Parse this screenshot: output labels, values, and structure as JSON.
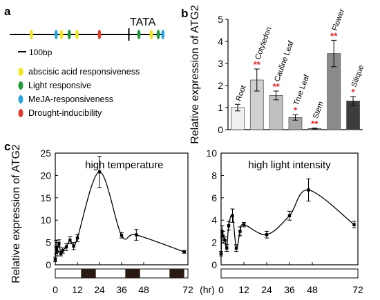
{
  "panel_labels": {
    "a": "a",
    "b": "b",
    "c": "c"
  },
  "panel_a": {
    "tata_label": "TATA",
    "scale_label": "100bp",
    "motifs": [
      {
        "color": "#f2e51b",
        "label": "abscisic acid responsiveness"
      },
      {
        "color": "#1f9a3b",
        "label": "Light responsive"
      },
      {
        "color": "#2aa6df",
        "label": "MeJA-responsiveness"
      },
      {
        "color": "#e23b2e",
        "label": "Drought-inducibility"
      }
    ],
    "sites": [
      {
        "pos": 0.14,
        "color": "#f2e51b"
      },
      {
        "pos": 0.3,
        "color": "#2aa6df"
      },
      {
        "pos": 0.335,
        "color": "#f2e51b"
      },
      {
        "pos": 0.385,
        "color": "#1f9a3b"
      },
      {
        "pos": 0.435,
        "color": "#f2e51b"
      },
      {
        "pos": 0.58,
        "color": "#e23b2e"
      },
      {
        "pos": 0.77,
        "color": "#000000"
      },
      {
        "pos": 0.835,
        "color": "#1f9a3b"
      },
      {
        "pos": 0.915,
        "color": "#f2e51b"
      },
      {
        "pos": 0.96,
        "color": "#1f9a3b"
      },
      {
        "pos": 0.99,
        "color": "#2aa6df"
      }
    ]
  },
  "chart_data": [
    {
      "type": "bar",
      "ylabel": "Relative expression of ATG2",
      "ylim": [
        0,
        5
      ],
      "yticks": [
        0,
        1,
        2,
        3,
        4,
        5
      ],
      "categories": [
        "Root",
        "Cotyledon",
        "Cauline Leaf",
        "True Leaf",
        "Stem",
        "Flower",
        "Silique"
      ],
      "values": [
        1.0,
        2.25,
        1.55,
        0.55,
        0.05,
        3.45,
        1.3
      ],
      "errors": [
        0.15,
        0.5,
        0.2,
        0.12,
        0.02,
        0.6,
        0.2
      ],
      "significance": [
        "",
        "**",
        "**",
        "*",
        "**",
        "**",
        "*"
      ],
      "bar_colors": [
        "#f0f0f0",
        "#d0d0d0",
        "#c0c0c0",
        "#a8a8a8",
        "#808080",
        "#8a8a8a",
        "#3c3c3c"
      ]
    },
    {
      "type": "line",
      "title": "high temperature",
      "ylabel": "Relative expression of ATG2",
      "xlabel": "(hr)",
      "xlim": [
        0,
        72
      ],
      "ylim": [
        0,
        25
      ],
      "xticks": [
        0,
        12,
        24,
        36,
        48,
        72
      ],
      "yticks": [
        0,
        5,
        10,
        15,
        20,
        25
      ],
      "x": [
        0,
        0.5,
        1,
        2,
        3,
        4,
        6,
        8,
        10,
        12,
        24,
        36,
        44,
        70
      ],
      "y": [
        1.2,
        4.0,
        3.0,
        4.8,
        2.5,
        3.2,
        4.0,
        5.5,
        4.2,
        6.0,
        20.8,
        6.6,
        6.7,
        2.9
      ],
      "errors": [
        0.5,
        1.5,
        1.0,
        0.8,
        0.5,
        0.6,
        0.8,
        0.8,
        0.8,
        0.8,
        3.5,
        0.6,
        1.2,
        0.3
      ],
      "dark_periods": [
        [
          14,
          22
        ],
        [
          38,
          46
        ],
        [
          62,
          70
        ]
      ]
    },
    {
      "type": "line",
      "title": "high light intensity",
      "xlim": [
        0,
        72
      ],
      "ylim": [
        0,
        10
      ],
      "xticks": [
        0,
        12,
        24,
        36,
        48,
        72
      ],
      "yticks": [
        0,
        2,
        4,
        6,
        8,
        10
      ],
      "x": [
        0,
        0.5,
        1,
        2,
        3,
        4,
        6,
        8,
        10,
        12,
        24,
        36,
        46,
        70
      ],
      "y": [
        1.0,
        3.0,
        2.6,
        2.2,
        1.5,
        3.5,
        4.4,
        1.5,
        3.0,
        3.6,
        2.7,
        4.4,
        6.7,
        3.6
      ],
      "errors": [
        0.2,
        0.5,
        0.4,
        0.3,
        0.3,
        0.4,
        0.6,
        0.3,
        0.4,
        0.2,
        0.3,
        0.4,
        1.0,
        0.3
      ]
    }
  ]
}
